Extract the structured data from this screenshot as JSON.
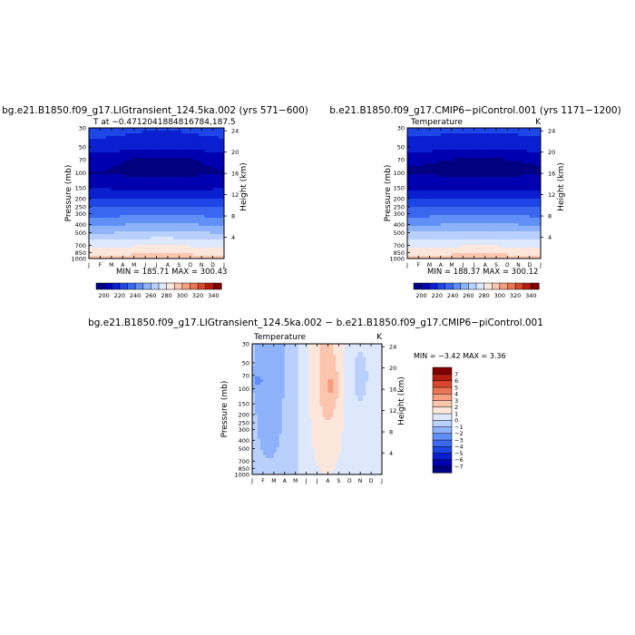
{
  "months": [
    "J",
    "F",
    "M",
    "A",
    "M",
    "J",
    "J",
    "A",
    "S",
    "O",
    "N",
    "D",
    "J"
  ],
  "pressure_ticks": [
    "30",
    "50",
    "70",
    "100",
    "150",
    "200",
    "250",
    "300",
    "400",
    "500",
    "700",
    "850",
    "1000"
  ],
  "panels": [
    {
      "id": "lig",
      "title": "bg.e21.B1850.f09_g17.LIGtransient_124.5ka.002 (yrs 571−600)",
      "left_label": "T at −0.4712041884816784,187.5",
      "right_label": "",
      "yaxis_label": "Pressure (mb)",
      "yaxis2_label": "Height (km)",
      "height_ticks": [
        "24",
        "20",
        "16",
        "12",
        "8",
        "4"
      ],
      "stats": "MIN = 185.71 MAX = 300.43",
      "colorbar_ticks": [
        "200",
        "220",
        "240",
        "260",
        "280",
        "300",
        "320",
        "340"
      ]
    },
    {
      "id": "pi",
      "title": "b.e21.B1850.f09_g17.CMIP6−piControl.001 (yrs 1171−1200)",
      "left_label": "Temperature",
      "right_label": "K",
      "yaxis_label": "Pressure (mb)",
      "yaxis2_label": "Height (km)",
      "height_ticks": [
        "24",
        "20",
        "16",
        "12",
        "8",
        "4"
      ],
      "stats": "MIN = 188.37 MAX = 300.12",
      "colorbar_ticks": [
        "200",
        "220",
        "240",
        "260",
        "280",
        "300",
        "320",
        "340"
      ]
    },
    {
      "id": "diff",
      "title": "bg.e21.B1850.f09_g17.LIGtransient_124.5ka.002 − b.e21.B1850.f09_g17.CMIP6−piControl.001",
      "left_label": "Temperature",
      "right_label": "K",
      "yaxis_label": "Pressure (mb)",
      "yaxis2_label": "Height (km)",
      "height_ticks": [
        "24",
        "20",
        "16",
        "12",
        "8",
        "4"
      ],
      "stats": "MIN =   −3.42 MAX =    3.36",
      "colorbar_ticks": [
        "7",
        "6",
        "5",
        "4",
        "3",
        "2",
        "1",
        "0",
        "−1",
        "−2",
        "−3",
        "−4",
        "−5",
        "−6",
        "−7"
      ]
    }
  ],
  "chart_data": [
    {
      "type": "heatmap",
      "title": "bg.e21.B1850.f09_g17.LIGtransient_124.5ka.002 (yrs 571−600)",
      "xlabel": "",
      "ylabel": "Pressure (mb)",
      "y2label": "Height (km)",
      "x": [
        "J",
        "F",
        "M",
        "A",
        "M",
        "J",
        "J",
        "A",
        "S",
        "O",
        "N",
        "D",
        "J"
      ],
      "pressure_levels": [
        30,
        50,
        70,
        100,
        150,
        200,
        250,
        300,
        400,
        500,
        700,
        850,
        1000
      ],
      "ylim": [
        1000,
        30
      ],
      "value_range": [
        185.71,
        300.43
      ],
      "colorbar": {
        "min": 190,
        "max": 350,
        "step": 10,
        "ticks": [
          200,
          220,
          240,
          260,
          280,
          300,
          320,
          340
        ]
      },
      "colors": [
        "#000080",
        "#0000b0",
        "#0a1fd0",
        "#1e46e6",
        "#3a67f0",
        "#6090f5",
        "#8fb3fa",
        "#b9d0fc",
        "#dde8fd",
        "#fde7dc",
        "#fbc5ae",
        "#f59f80",
        "#ea7552",
        "#d6472b",
        "#b51d0e",
        "#800000"
      ],
      "profile": [
        [
          30,
          223
        ],
        [
          50,
          214
        ],
        [
          70,
          200
        ],
        [
          100,
          198
        ],
        [
          150,
          208
        ],
        [
          200,
          220
        ],
        [
          250,
          229
        ],
        [
          300,
          237
        ],
        [
          400,
          250
        ],
        [
          500,
          261
        ],
        [
          700,
          278
        ],
        [
          850,
          287
        ],
        [
          1000,
          295
        ]
      ],
      "seasonal_amplitude": 3
    },
    {
      "type": "heatmap",
      "title": "b.e21.B1850.f09_g17.CMIP6−piControl.001 (yrs 1171−1200)",
      "xlabel": "",
      "ylabel": "Pressure (mb)",
      "y2label": "Height (km)",
      "x": [
        "J",
        "F",
        "M",
        "A",
        "M",
        "J",
        "J",
        "A",
        "S",
        "O",
        "N",
        "D",
        "J"
      ],
      "pressure_levels": [
        30,
        50,
        70,
        100,
        150,
        200,
        250,
        300,
        400,
        500,
        700,
        850,
        1000
      ],
      "ylim": [
        1000,
        30
      ],
      "value_range": [
        188.37,
        300.12
      ],
      "colorbar": {
        "min": 190,
        "max": 350,
        "step": 10,
        "ticks": [
          200,
          220,
          240,
          260,
          280,
          300,
          320,
          340
        ]
      },
      "colors": [
        "#000080",
        "#0000b0",
        "#0a1fd0",
        "#1e46e6",
        "#3a67f0",
        "#6090f5",
        "#8fb3fa",
        "#b9d0fc",
        "#dde8fd",
        "#fde7dc",
        "#fbc5ae",
        "#f59f80",
        "#ea7552",
        "#d6472b",
        "#b51d0e",
        "#800000"
      ],
      "profile": [
        [
          30,
          223
        ],
        [
          50,
          214
        ],
        [
          70,
          200
        ],
        [
          100,
          198
        ],
        [
          150,
          208
        ],
        [
          200,
          220
        ],
        [
          250,
          229
        ],
        [
          300,
          237
        ],
        [
          400,
          250
        ],
        [
          500,
          261
        ],
        [
          700,
          278
        ],
        [
          850,
          287
        ],
        [
          1000,
          295
        ]
      ],
      "seasonal_amplitude": 1.5
    },
    {
      "type": "heatmap",
      "title": "bg.e21.B1850.f09_g17.LIGtransient_124.5ka.002 − b.e21.B1850.f09_g17.CMIP6−piControl.001",
      "xlabel": "",
      "ylabel": "Pressure (mb)",
      "y2label": "Height (km)",
      "x": [
        "J",
        "F",
        "M",
        "A",
        "M",
        "J",
        "J",
        "A",
        "S",
        "O",
        "N",
        "D",
        "J"
      ],
      "pressure_levels": [
        30,
        50,
        70,
        100,
        150,
        200,
        250,
        300,
        400,
        500,
        700,
        850,
        1000
      ],
      "ylim": [
        1000,
        30
      ],
      "value_range": [
        -3.42,
        3.36
      ],
      "colorbar": {
        "min": -8,
        "max": 8,
        "step": 1,
        "ticks": [
          -7,
          -6,
          -5,
          -4,
          -3,
          -2,
          -1,
          0,
          1,
          2,
          3,
          4,
          5,
          6,
          7
        ]
      },
      "colors": [
        "#000080",
        "#0000b0",
        "#0a1fd0",
        "#1e46e6",
        "#3a67f0",
        "#6090f5",
        "#8fb3fa",
        "#b9d0fc",
        "#dde8fd",
        "#fde7dc",
        "#fbc5ae",
        "#f59f80",
        "#ea7552",
        "#d6472b",
        "#b51d0e",
        "#800000"
      ],
      "pattern": "negative (−1 to −2) Jan–Apr, positive (+1 to +3) Jun–Oct, max near Sep at 100 mb"
    }
  ]
}
